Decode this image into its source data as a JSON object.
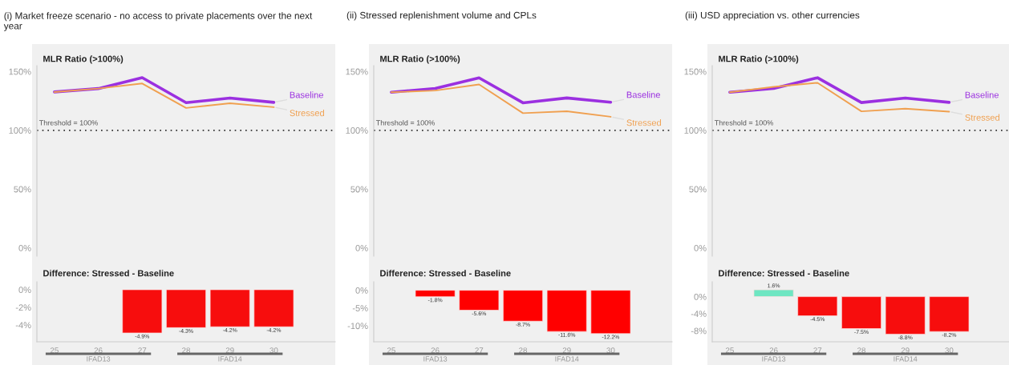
{
  "chart_data": [
    {
      "type": "line",
      "title": "(i) Market freeze scenario - no access to private placements over the next year",
      "subtitle": "MLR Ratio (>100%)",
      "categories": [
        "25",
        "26",
        "27",
        "28",
        "29",
        "30"
      ],
      "tick_labels": "y",
      "series": [
        {
          "name": "Baseline",
          "color": "#9b30e0",
          "values": [
            132.6,
            135.5,
            144.8,
            123.5,
            127.4,
            123.8
          ]
        },
        {
          "name": "Stressed",
          "color": "#f0a050",
          "values": [
            132.6,
            135.5,
            139.8,
            119.0,
            123.0,
            119.7
          ]
        }
      ],
      "ylim": [
        -7,
        155
      ],
      "yticks": [
        {
          "value": 0,
          "label": "0%"
        },
        {
          "value": 50,
          "label": "50%"
        },
        {
          "value": 100,
          "label": "100%"
        },
        {
          "value": 150,
          "label": "150%"
        }
      ],
      "ref_lines": [
        {
          "axis": "y",
          "value": 100,
          "label": "Threshold = 100%",
          "line_style": "dotted",
          "color": "#333333"
        }
      ]
    },
    {
      "type": "bar",
      "title": "Difference: Stressed - Baseline",
      "categories": [
        "25",
        "26",
        "27",
        "28",
        "29",
        "30"
      ],
      "values": [
        null,
        null,
        -4.9,
        -4.3,
        -4.2,
        -4.2
      ],
      "colors": [
        null,
        null,
        "#f70d0d",
        "#f70d0d",
        "#f70d0d",
        "#f70d0d"
      ],
      "value_labels": [
        null,
        null,
        "-4.9%",
        "-4.3%",
        "-4.2%",
        "-4.2%"
      ],
      "ylim": [
        -5.9,
        0.9
      ],
      "yticks": [
        {
          "value": -4,
          "label": "-4%"
        },
        {
          "value": -2,
          "label": "-2%"
        },
        {
          "value": 0,
          "label": "0%"
        }
      ],
      "annotations": [
        "IFAD13",
        "IFAD14"
      ]
    },
    {
      "type": "line",
      "title": "(ii) Stressed replenishment volume and CPLs",
      "subtitle": "MLR Ratio (>100%)",
      "categories": [
        "25",
        "26",
        "27",
        "28",
        "29",
        "30"
      ],
      "tick_labels": "y",
      "series": [
        {
          "name": "Baseline",
          "color": "#9b30e0",
          "values": [
            132.4,
            135.6,
            144.6,
            123.4,
            127.5,
            123.9
          ]
        },
        {
          "name": "Stressed",
          "color": "#f0a050",
          "values": [
            132.4,
            133.8,
            139.0,
            114.6,
            116.2,
            111.5
          ]
        }
      ],
      "ylim": [
        -7,
        155
      ],
      "yticks": [
        {
          "value": 0,
          "label": "0%"
        },
        {
          "value": 50,
          "label": "50%"
        },
        {
          "value": 100,
          "label": "100%"
        },
        {
          "value": 150,
          "label": "150%"
        }
      ],
      "ref_lines": [
        {
          "axis": "y",
          "value": 100,
          "label": "Threshold = 100%",
          "line_style": "dotted",
          "color": "#333333"
        }
      ]
    },
    {
      "type": "bar",
      "title": "Difference: Stressed - Baseline",
      "categories": [
        "25",
        "26",
        "27",
        "28",
        "29",
        "30"
      ],
      "values": [
        null,
        -1.8,
        -5.6,
        -8.7,
        -11.6,
        -12.2
      ],
      "colors": [
        null,
        "#ff0000",
        "#ff0000",
        "#ff0000",
        "#ff0000",
        "#ff0000"
      ],
      "value_labels": [
        null,
        "-1.8%",
        "-5.6%",
        "-8.7%",
        "-11.6%",
        "-12.2%"
      ],
      "ylim": [
        -14.5,
        2.4
      ],
      "yticks": [
        {
          "value": -10,
          "label": "-10%"
        },
        {
          "value": -5,
          "label": "-5%"
        },
        {
          "value": 0,
          "label": "0%"
        }
      ],
      "annotations": [
        "IFAD13",
        "IFAD14"
      ]
    },
    {
      "type": "line",
      "title": "(iii) USD appreciation vs. other currencies",
      "subtitle": "MLR Ratio (>100%)",
      "categories": [
        "25",
        "26",
        "27",
        "28",
        "29",
        "30"
      ],
      "tick_labels": "y",
      "series": [
        {
          "name": "Baseline",
          "color": "#9b30e0",
          "values": [
            132.4,
            135.6,
            144.7,
            123.6,
            127.4,
            123.8
          ]
        },
        {
          "name": "Stressed",
          "color": "#f0a050",
          "values": [
            132.4,
            137.0,
            140.4,
            116.1,
            118.4,
            115.9
          ]
        }
      ],
      "ylim": [
        -7,
        155
      ],
      "yticks": [
        {
          "value": 0,
          "label": "0%"
        },
        {
          "value": 50,
          "label": "50%"
        },
        {
          "value": 100,
          "label": "100%"
        },
        {
          "value": 150,
          "label": "150%"
        }
      ],
      "ref_lines": [
        {
          "axis": "y",
          "value": 100,
          "label": "Threshold = 100%",
          "line_style": "dotted",
          "color": "#333333"
        }
      ]
    },
    {
      "type": "bar",
      "title": "Difference: Stressed - Baseline",
      "categories": [
        "25",
        "26",
        "27",
        "28",
        "29",
        "30"
      ],
      "values": [
        null,
        1.6,
        -4.5,
        -7.5,
        -8.8,
        -8.2
      ],
      "colors": [
        null,
        "#6ee6c2",
        "#f70d0d",
        "#f70d0d",
        "#f70d0d",
        "#f70d0d"
      ],
      "value_labels": [
        null,
        "1.6%",
        "-4.5%",
        "-7.5%",
        "-8.8%",
        "-8.2%"
      ],
      "ylim": [
        -10.6,
        3.5
      ],
      "yticks": [
        {
          "value": -8,
          "label": "-8%"
        },
        {
          "value": -4,
          "label": "-4%"
        },
        {
          "value": 0,
          "label": "0%"
        }
      ],
      "annotations": [
        "IFAD13",
        "IFAD14"
      ]
    }
  ]
}
